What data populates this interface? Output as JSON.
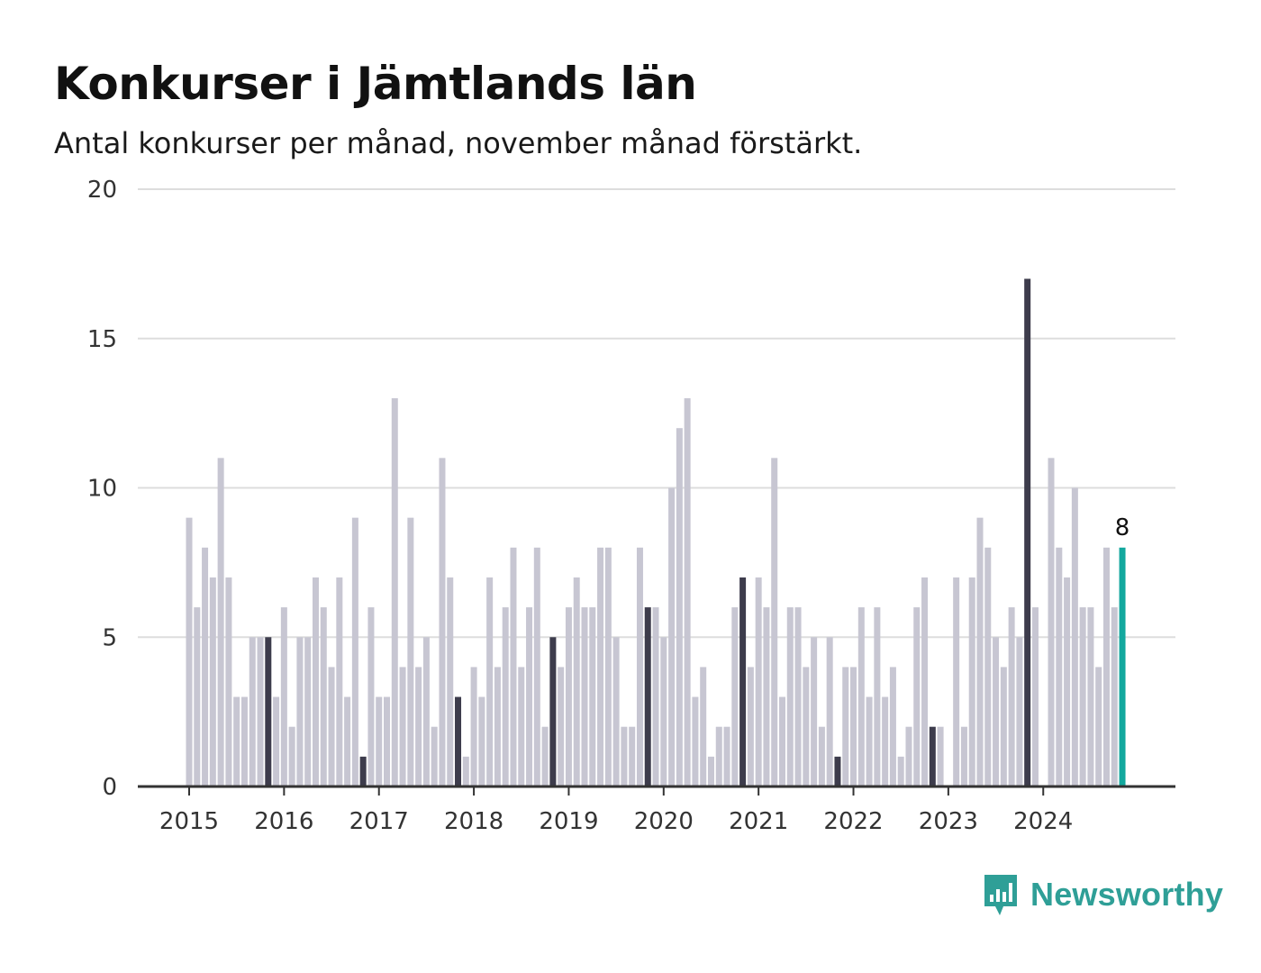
{
  "header": {
    "title": "Konkurser i Jämtlands län",
    "subtitle": "Antal konkurser per månad, november månad förstärkt."
  },
  "brand": {
    "name": "Newsworthy",
    "icon": "newsworthy-logo-icon",
    "color": "#2f9f97"
  },
  "colors": {
    "regular": "#c7c6d2",
    "november": "#3d3c4c",
    "latest": "#13a89e",
    "grid": "#dddddd",
    "axis": "#333333"
  },
  "chart_data": {
    "type": "bar",
    "title": "Konkurser i Jämtlands län",
    "subtitle": "Antal konkurser per månad, november månad förstärkt.",
    "xlabel": "",
    "ylabel": "",
    "ylim": [
      0,
      20
    ],
    "yticks": [
      0,
      5,
      10,
      15,
      20
    ],
    "xticks": [
      "2015",
      "2016",
      "2017",
      "2018",
      "2019",
      "2020",
      "2021",
      "2022",
      "2023",
      "2024"
    ],
    "start": "2015-01",
    "end": "2024-11",
    "highlight_month": "november",
    "grid": true,
    "latest_label": "8",
    "values": [
      9,
      6,
      8,
      7,
      11,
      7,
      3,
      3,
      5,
      5,
      5,
      3,
      6,
      2,
      5,
      5,
      7,
      6,
      4,
      7,
      3,
      9,
      1,
      6,
      3,
      3,
      13,
      4,
      9,
      4,
      5,
      2,
      11,
      7,
      3,
      1,
      4,
      3,
      7,
      4,
      6,
      8,
      4,
      6,
      8,
      2,
      5,
      4,
      6,
      7,
      6,
      6,
      8,
      8,
      5,
      2,
      2,
      8,
      6,
      6,
      5,
      10,
      12,
      13,
      3,
      4,
      1,
      2,
      2,
      6,
      7,
      4,
      7,
      6,
      11,
      3,
      6,
      6,
      4,
      5,
      2,
      5,
      1,
      4,
      4,
      6,
      3,
      6,
      3,
      4,
      1,
      2,
      6,
      7,
      2,
      2,
      0,
      7,
      2,
      7,
      9,
      8,
      5,
      4,
      6,
      5,
      17,
      6,
      0,
      11,
      8,
      7,
      10,
      6,
      6,
      4,
      8,
      6,
      8
    ]
  }
}
